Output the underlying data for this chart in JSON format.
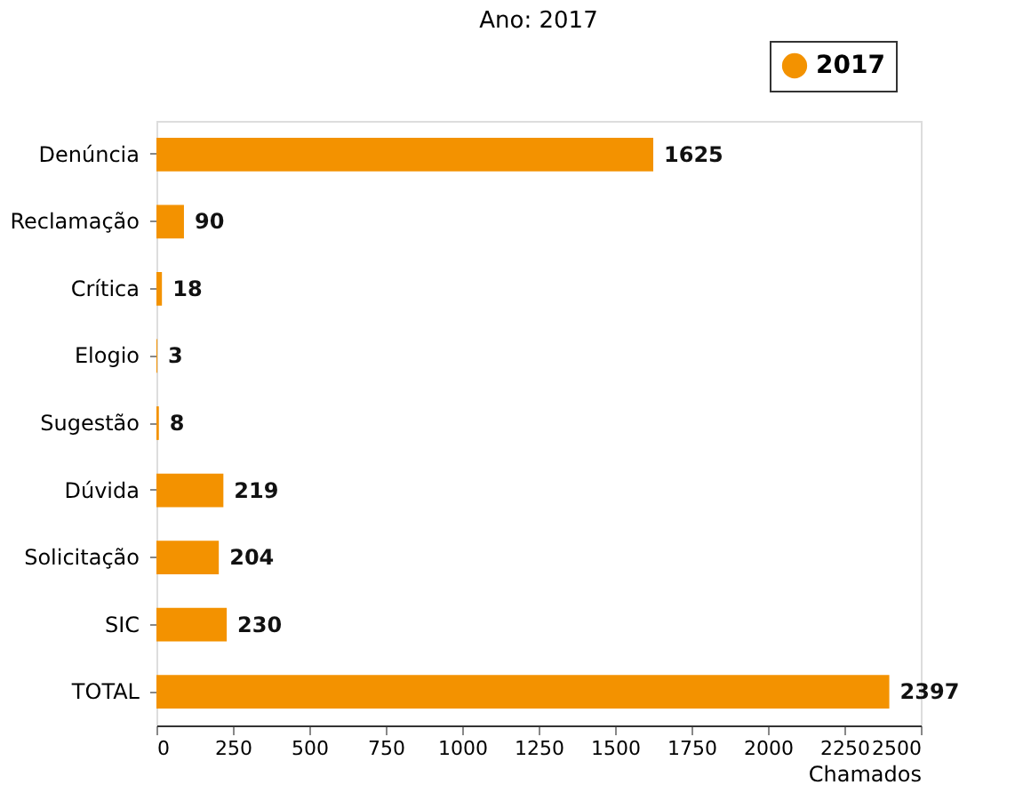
{
  "chart_data": {
    "type": "bar",
    "orientation": "horizontal",
    "title": "Ano: 2017",
    "xlabel": "Chamados",
    "categories": [
      "Denúncia",
      "Reclamação",
      "Crítica",
      "Elogio",
      "Sugestão",
      "Dúvida",
      "Solicitação",
      "SIC",
      "TOTAL"
    ],
    "series": [
      {
        "name": "2017",
        "color": "#f39200",
        "values": [
          1625,
          90,
          18,
          3,
          8,
          219,
          204,
          230,
          2397
        ]
      }
    ],
    "xlim": [
      0,
      2500
    ],
    "xticks": [
      0,
      250,
      500,
      750,
      1000,
      1250,
      1500,
      1750,
      2000,
      2250,
      2500
    ],
    "data_labels": true,
    "grid": false,
    "legend": "top right"
  }
}
